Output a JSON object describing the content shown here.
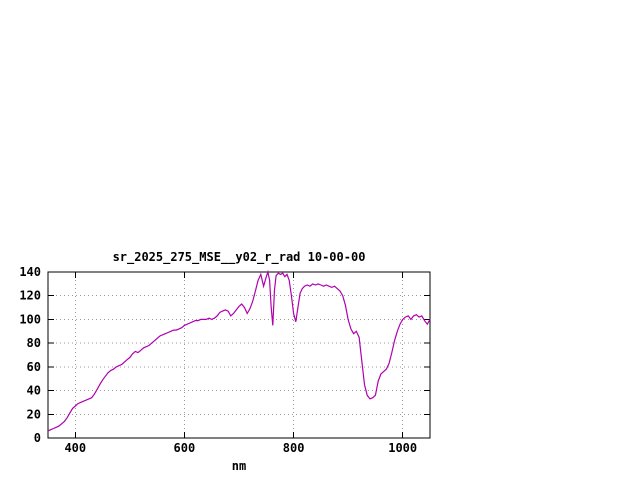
{
  "chart_data": {
    "type": "line",
    "title": "sr_2025_275_MSE__y02_r_rad 10-00-00",
    "xlabel": "nm",
    "ylabel": "",
    "xlim": [
      350,
      1050
    ],
    "ylim": [
      0,
      140
    ],
    "xticks": [
      400,
      600,
      800,
      1000
    ],
    "yticks": [
      0,
      20,
      40,
      60,
      80,
      100,
      120,
      140
    ],
    "grid": true,
    "legend": "none",
    "line_color": "#b000b0",
    "series": [
      {
        "x": [
          350,
          355,
          360,
          365,
          370,
          375,
          380,
          385,
          390,
          395,
          400,
          405,
          410,
          415,
          420,
          425,
          430,
          435,
          440,
          445,
          450,
          455,
          460,
          465,
          470,
          475,
          480,
          485,
          490,
          495,
          500,
          505,
          510,
          515,
          520,
          525,
          530,
          535,
          540,
          545,
          550,
          555,
          560,
          565,
          570,
          575,
          580,
          585,
          590,
          595,
          600,
          605,
          610,
          615,
          620,
          625,
          630,
          635,
          640,
          645,
          650,
          655,
          660,
          665,
          670,
          675,
          680,
          685,
          690,
          695,
          700,
          705,
          710,
          715,
          720,
          725,
          730,
          735,
          740,
          745,
          750,
          753,
          756,
          759,
          762,
          765,
          768,
          772,
          776,
          780,
          784,
          788,
          792,
          796,
          800,
          804,
          808,
          812,
          816,
          820,
          825,
          830,
          835,
          840,
          845,
          850,
          855,
          860,
          865,
          870,
          875,
          880,
          885,
          890,
          895,
          900,
          905,
          910,
          915,
          920,
          925,
          930,
          935,
          940,
          945,
          950,
          955,
          960,
          965,
          970,
          975,
          980,
          985,
          990,
          995,
          1000,
          1005,
          1010,
          1015,
          1020,
          1025,
          1030,
          1035,
          1040,
          1045,
          1050
        ],
        "y": [
          6,
          7,
          8,
          9,
          10,
          12,
          14,
          17,
          21,
          25,
          27,
          29,
          30,
          31,
          32,
          33,
          34,
          37,
          41,
          45,
          49,
          52,
          55,
          57,
          58,
          60,
          61,
          62,
          64,
          66,
          68,
          71,
          73,
          72,
          74,
          76,
          77,
          78,
          80,
          82,
          84,
          86,
          87,
          88,
          89,
          90,
          91,
          91,
          92,
          93,
          95,
          96,
          97,
          98,
          99,
          99,
          100,
          100,
          100,
          101,
          100,
          101,
          103,
          106,
          107,
          108,
          107,
          103,
          105,
          108,
          111,
          113,
          110,
          105,
          109,
          115,
          124,
          133,
          138,
          128,
          136,
          140,
          133,
          110,
          95,
          125,
          137,
          139,
          138,
          139,
          136,
          138,
          133,
          120,
          105,
          98,
          110,
          122,
          126,
          128,
          129,
          128,
          130,
          129,
          130,
          129,
          128,
          129,
          128,
          127,
          128,
          126,
          124,
          120,
          112,
          100,
          92,
          88,
          90,
          85,
          65,
          45,
          36,
          33,
          34,
          36,
          48,
          54,
          56,
          58,
          63,
          72,
          82,
          90,
          96,
          100,
          102,
          103,
          100,
          103,
          104,
          102,
          103,
          99,
          96,
          100
        ]
      }
    ]
  }
}
